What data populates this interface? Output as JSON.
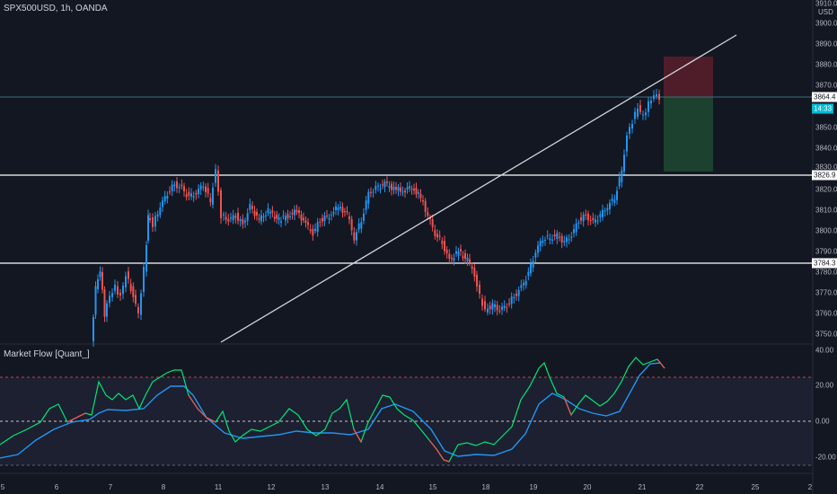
{
  "header": {
    "symbol_line": "SPX500USD, 1h, OANDA",
    "currency": "USD"
  },
  "indicator": {
    "title": "Market Flow [Quant_]"
  },
  "price_axis": {
    "ticks": [
      "3910.0",
      "3900.0",
      "3890.0",
      "3880.0",
      "3870.0",
      "3850.0",
      "3840.0",
      "3830.0",
      "3820.0",
      "3810.0",
      "3800.0",
      "3790.0",
      "3780.0",
      "3770.0",
      "3760.0",
      "3750.0"
    ]
  },
  "price_tags": {
    "current": "3864.4",
    "countdown": "14:33",
    "resistance": "3826.9",
    "support": "3784.3"
  },
  "indicator_axis": {
    "ticks": [
      "40.00",
      "20.00",
      "0.00",
      "-20.00"
    ]
  },
  "time_axis": {
    "ticks": [
      "5",
      "6",
      "7",
      "8",
      "11",
      "12",
      "13",
      "14",
      "15",
      "18",
      "19",
      "20",
      "21",
      "22",
      "25",
      "2"
    ]
  },
  "colors": {
    "background": "#131722",
    "up": "#26a69a",
    "up_candle": "#2196f3",
    "down_candle": "#ef5350",
    "flow_line": "#00e676",
    "signal_line": "#2196f3",
    "level_line": "#ffffff",
    "trendline": "#d1d4dc",
    "stop_zone": "#5b1f2a",
    "target_zone": "#1e4a31",
    "dashed_upper": "#ef5350",
    "dashed_zero": "#ffffff"
  }
}
